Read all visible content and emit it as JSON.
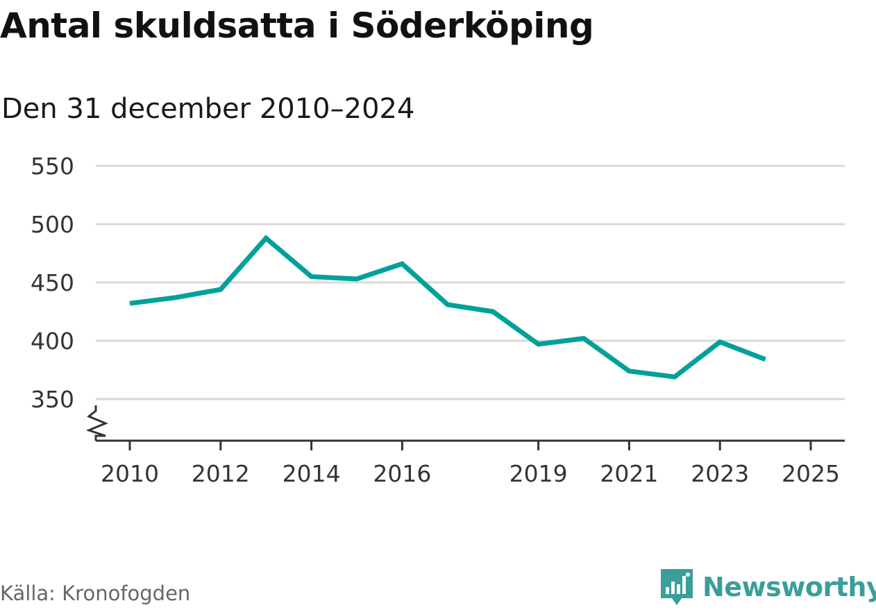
{
  "header": {
    "title": "Antal skuldsatta i Söderköping",
    "subtitle": "Den 31 december 2010–2024"
  },
  "chart_data": {
    "type": "line",
    "title": "Antal skuldsatta i Söderköping",
    "subtitle": "Den 31 december 2010–2024",
    "xlabel": "",
    "ylabel": "",
    "x": [
      2010,
      2011,
      2012,
      2013,
      2014,
      2015,
      2016,
      2017,
      2018,
      2019,
      2020,
      2021,
      2022,
      2023,
      2024
    ],
    "series": [
      {
        "name": "Antal skuldsatta",
        "color": "#00a19a",
        "values": [
          432,
          437,
          444,
          488,
          455,
          453,
          466,
          431,
          425,
          397,
          402,
          374,
          369,
          399,
          384
        ]
      }
    ],
    "x_ticks": [
      "2010",
      "2012",
      "2014",
      "2016",
      "2019",
      "2021",
      "2023",
      "2025"
    ],
    "x_tick_values": [
      2010,
      2012,
      2014,
      2016,
      2019,
      2021,
      2023,
      2025
    ],
    "y_ticks": [
      "350",
      "400",
      "450",
      "500",
      "550"
    ],
    "y_tick_values": [
      350,
      400,
      450,
      500,
      550
    ],
    "xlim": [
      2009.75,
      2025.75
    ],
    "ylim": [
      320,
      550
    ],
    "grid": true,
    "broken_axis": true,
    "colors": {
      "line": "#00a19a",
      "grid": "#d9d9d9",
      "axis": "#333333"
    }
  },
  "footer": {
    "source": "Källa: Kronofogden",
    "brand": "Newsworthy",
    "brand_icon": "newsworthy-chart-icon",
    "brand_color": "#3a9e9a"
  }
}
